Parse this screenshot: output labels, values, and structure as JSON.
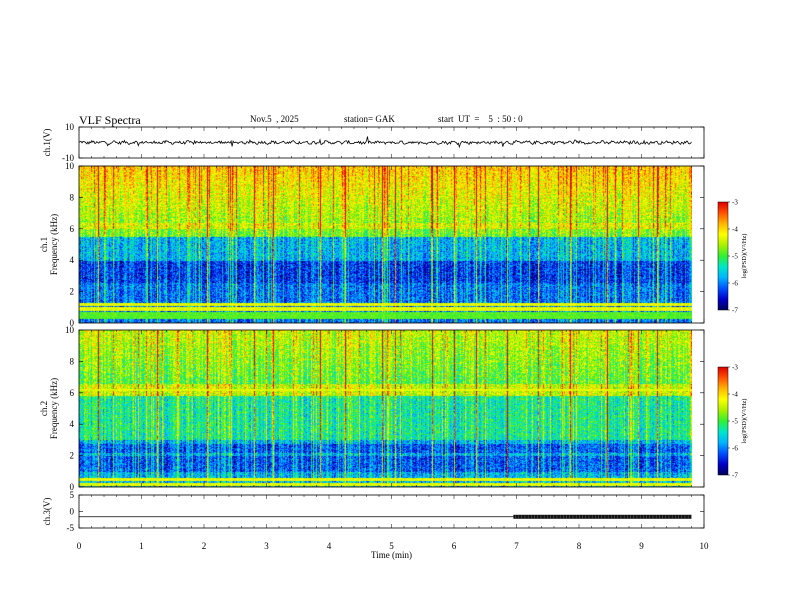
{
  "header": {
    "title": "VLF  Spectra",
    "date": "Nov.5  , 2025",
    "station": "station= GAK",
    "start": "start  UT  =    5  : 50 : 0"
  },
  "colors": {
    "colormap": [
      "#00005a",
      "#0000c8",
      "#0050ff",
      "#00b4ff",
      "#00e6c8",
      "#32f032",
      "#aaf000",
      "#ffff00",
      "#ffb400",
      "#ff5000",
      "#dc0000"
    ],
    "trace": "#000000"
  },
  "chart_data": [
    {
      "type": "line",
      "name": "ch1-waveform",
      "ylabel": "ch.1(V)",
      "ylim": [
        -10,
        10
      ],
      "yticks": [
        "10",
        "-10"
      ],
      "xlim": [
        0,
        10
      ],
      "approx_mean": 0,
      "approx_amplitude": 2
    },
    {
      "type": "heatmap",
      "name": "ch1-spectrogram",
      "ylabel": "ch.1\nFrequency (kHz)",
      "xlim": [
        0,
        10
      ],
      "ylim": [
        0,
        10
      ],
      "yticks": [
        "0",
        "2",
        "4",
        "6",
        "8",
        "10"
      ],
      "colorbar": {
        "label": "log(PSD)(V²/Hz)",
        "range": [
          -7,
          -3
        ],
        "ticks": [
          "-3",
          "-4",
          "-5",
          "-6",
          "-7"
        ]
      },
      "x_end": 9.8,
      "quiet_band_khz": [
        0.3,
        0.75
      ],
      "strong_bands_khz": [
        0.5,
        0.9,
        1.0,
        1.2
      ],
      "spike_times_min": [
        0.3,
        1.25,
        2.05,
        2.8,
        3.1,
        3.85,
        4.25,
        4.85,
        5.05,
        5.65,
        6.0,
        6.35,
        6.85,
        7.35,
        7.85,
        8.45,
        8.95,
        9.25
      ]
    },
    {
      "type": "heatmap",
      "name": "ch2-spectrogram",
      "ylabel": "ch.2\nFrequency (kHz)",
      "xlim": [
        0,
        10
      ],
      "ylim": [
        0,
        10
      ],
      "yticks": [
        "0",
        "2",
        "4",
        "6",
        "8",
        "10"
      ],
      "colorbar": {
        "label": "log(PSD)(V²/Hz)",
        "range": [
          -7,
          -3
        ],
        "ticks": [
          "-3",
          "-4",
          "-5",
          "-6",
          "-7"
        ]
      },
      "x_end": 9.8,
      "strong_bands_khz": [
        0.2,
        0.5,
        6.2
      ],
      "spike_times_min": [
        0.3,
        1.25,
        2.05,
        2.8,
        3.1,
        3.85,
        4.25,
        4.85,
        5.05,
        5.65,
        6.0,
        6.35,
        6.85,
        7.35,
        7.85,
        8.45,
        8.95,
        9.25
      ]
    },
    {
      "type": "line",
      "name": "ch3-signal",
      "ylabel": "ch.3(V)",
      "xlabel": "Time  (min)",
      "xlim": [
        0,
        10
      ],
      "ylim": [
        -5,
        5
      ],
      "yticks": [
        "5",
        "0",
        "-5"
      ],
      "xticks": [
        "0",
        "1",
        "2",
        "3",
        "4",
        "5",
        "6",
        "7",
        "8",
        "9",
        "10"
      ],
      "level_v": -1.6,
      "pulse_start_min": 6.95,
      "pulse_end_min": 9.8
    }
  ]
}
